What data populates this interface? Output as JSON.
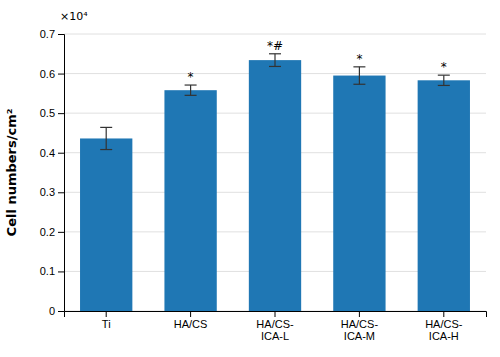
{
  "chart_data": {
    "type": "bar",
    "categories": [
      "Ti",
      "HA/CS",
      "HA/CS-\nICA-L",
      "HA/CS-\nICA-M",
      "HA/CS-\nICA-H"
    ],
    "values": [
      0.436,
      0.558,
      0.634,
      0.595,
      0.583
    ],
    "errors": [
      0.028,
      0.013,
      0.016,
      0.022,
      0.013
    ],
    "annotations": [
      null,
      "*",
      "*#",
      "*",
      "*"
    ],
    "ylabel": "Cell numbers/cm²",
    "scale_label": "×10⁴",
    "ylim": [
      0,
      0.7
    ],
    "yticks": [
      0,
      0.1,
      0.2,
      0.3,
      0.4,
      0.5,
      0.6,
      0.7
    ],
    "grid": true
  }
}
